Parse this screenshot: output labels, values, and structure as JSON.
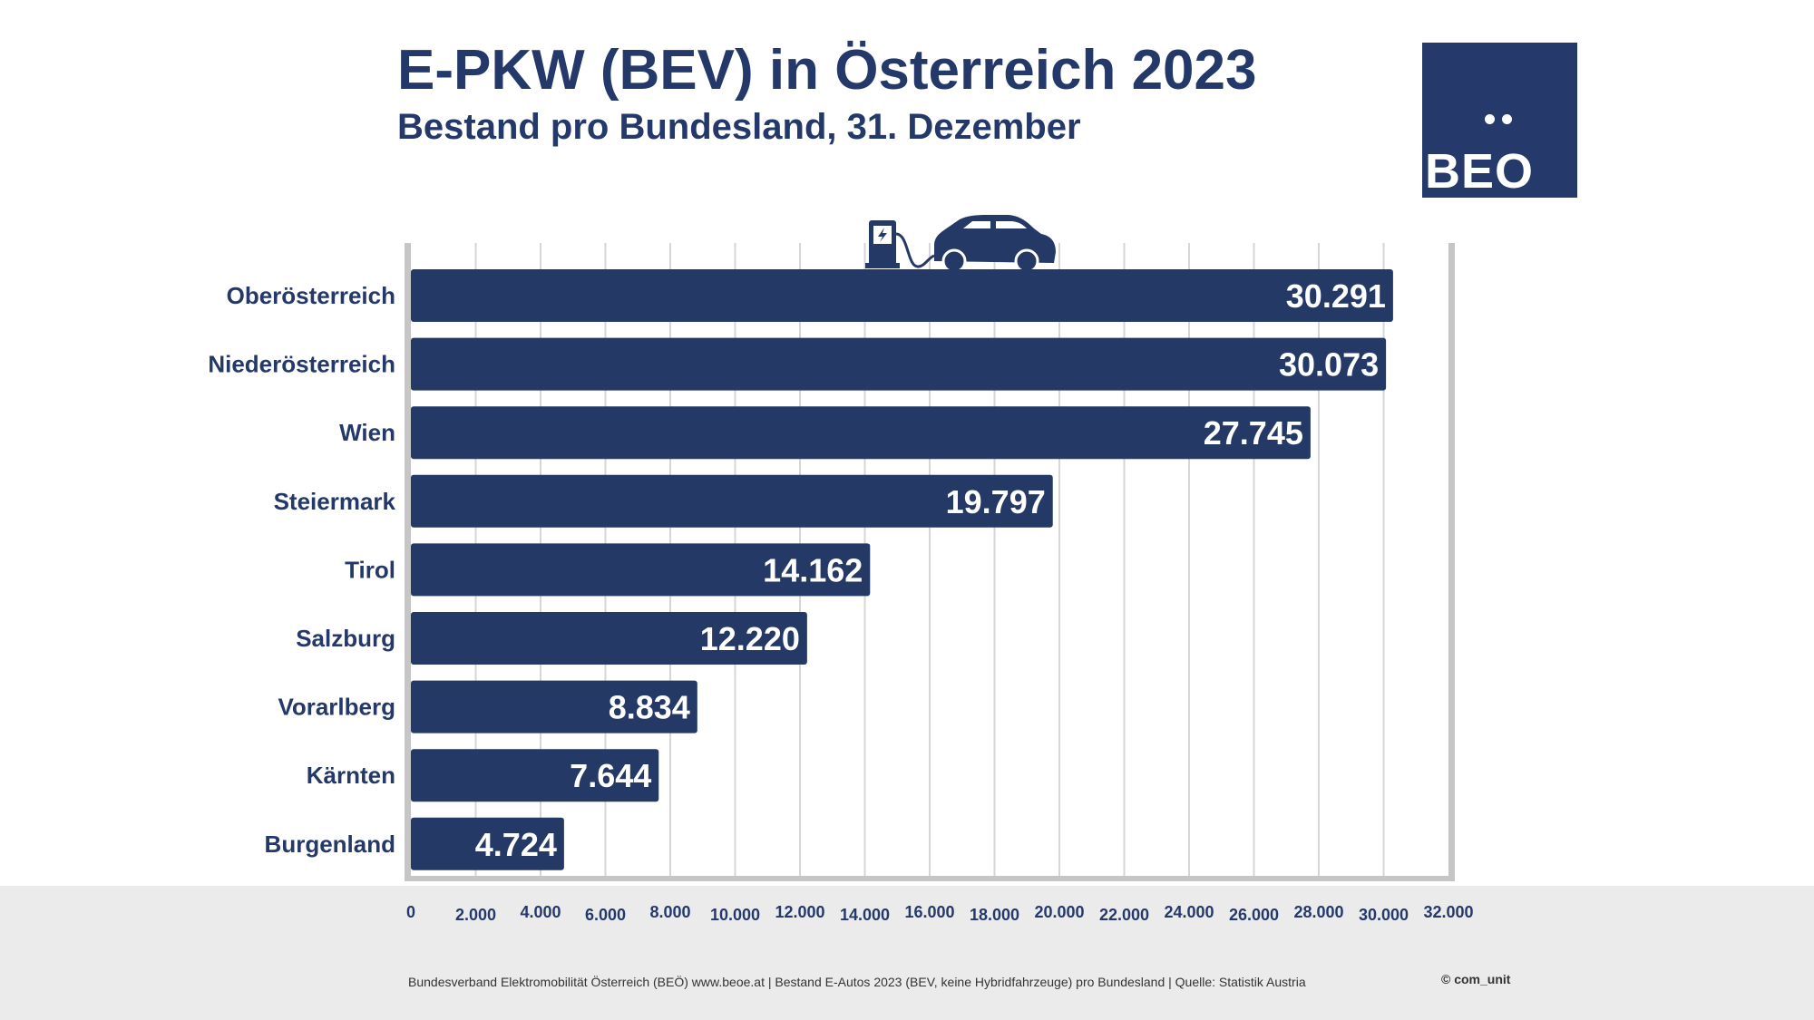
{
  "header": {
    "title": "E-PKW (BEV) in Österreich 2023",
    "subtitle": "Bestand pro Bundesland, 31. Dezember"
  },
  "logo": {
    "text": "BEO",
    "color": "#253a6b"
  },
  "footer": {
    "source": "Bundesverband Elektromobilität Österreich (BEÖ) www.beoe.at | Bestand E-Autos 2023 (BEV, keine Hybridfahrzeuge) pro Bundesland | Quelle: Statistik Austria",
    "copyright": "© com_unit"
  },
  "colors": {
    "bar": "#243966",
    "text": "#24396a",
    "grid": "#d6d6d6",
    "axis": "#c6c6c6",
    "footer_bg": "#ebebeb"
  },
  "icons": [
    "charging-station-icon",
    "electric-car-icon"
  ],
  "chart_data": {
    "type": "bar",
    "orientation": "horizontal",
    "categories": [
      "Oberösterreich",
      "Niederösterreich",
      "Wien",
      "Steiermark",
      "Tirol",
      "Salzburg",
      "Vorarlberg",
      "Kärnten",
      "Burgenland"
    ],
    "values": [
      30291,
      30073,
      27745,
      19797,
      14162,
      12220,
      8834,
      7644,
      4724
    ],
    "value_labels": [
      "30.291",
      "30.073",
      "27.745",
      "19.797",
      "14.162",
      "12.220",
      "8.834",
      "7.644",
      "4.724"
    ],
    "xlim": [
      0,
      32000
    ],
    "xticks": [
      0,
      2000,
      4000,
      6000,
      8000,
      10000,
      12000,
      14000,
      16000,
      18000,
      20000,
      22000,
      24000,
      26000,
      28000,
      30000,
      32000
    ],
    "xtick_labels": [
      "0",
      "2.000",
      "4.000",
      "6.000",
      "8.000",
      "10.000",
      "12.000",
      "14.000",
      "16.000",
      "18.000",
      "20.000",
      "22.000",
      "24.000",
      "26.000",
      "28.000",
      "30.000",
      "32.000"
    ],
    "grid": true,
    "legend": "none"
  }
}
